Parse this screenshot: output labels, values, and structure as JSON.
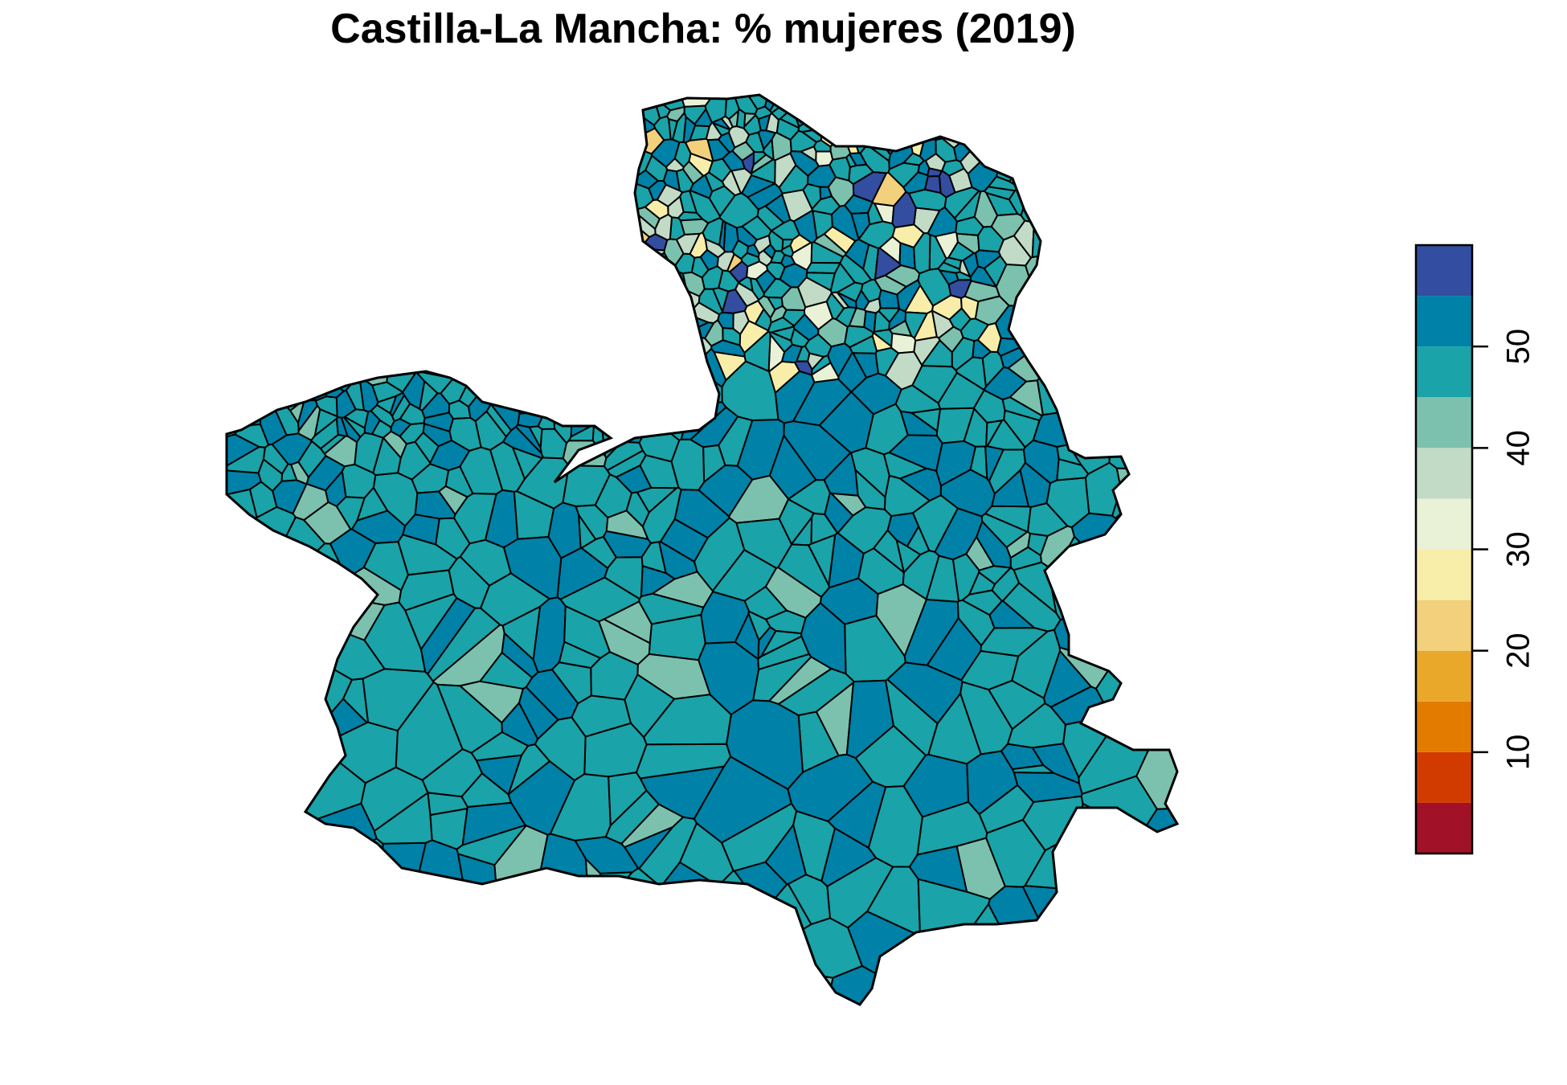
{
  "title": "Castilla-La Mancha: % mujeres (2019)",
  "map": {
    "region": "Castilla-La Mancha",
    "variable": "% mujeres",
    "year": "2019",
    "dominant_class_colors": [
      "#1AA3A8",
      "#0081A7",
      "#7CC1AE"
    ],
    "border_color": "#000000"
  },
  "legend": {
    "classes": [
      {
        "min": 0,
        "max": 5,
        "color": "#A11127"
      },
      {
        "min": 5,
        "max": 10,
        "color": "#D13B00"
      },
      {
        "min": 10,
        "max": 15,
        "color": "#E27B00"
      },
      {
        "min": 15,
        "max": 20,
        "color": "#EAA82A"
      },
      {
        "min": 20,
        "max": 25,
        "color": "#F2D07C"
      },
      {
        "min": 25,
        "max": 30,
        "color": "#F8EEAA"
      },
      {
        "min": 30,
        "max": 35,
        "color": "#E9F1D7"
      },
      {
        "min": 35,
        "max": 40,
        "color": "#C2DBC6"
      },
      {
        "min": 40,
        "max": 45,
        "color": "#7CC1AE"
      },
      {
        "min": 45,
        "max": 50,
        "color": "#1AA3A8"
      },
      {
        "min": 50,
        "max": 55,
        "color": "#0081A7"
      },
      {
        "min": 55,
        "max": 60,
        "color": "#334DA1"
      }
    ],
    "tick_labels": [
      "10",
      "20",
      "30",
      "40",
      "50"
    ]
  }
}
